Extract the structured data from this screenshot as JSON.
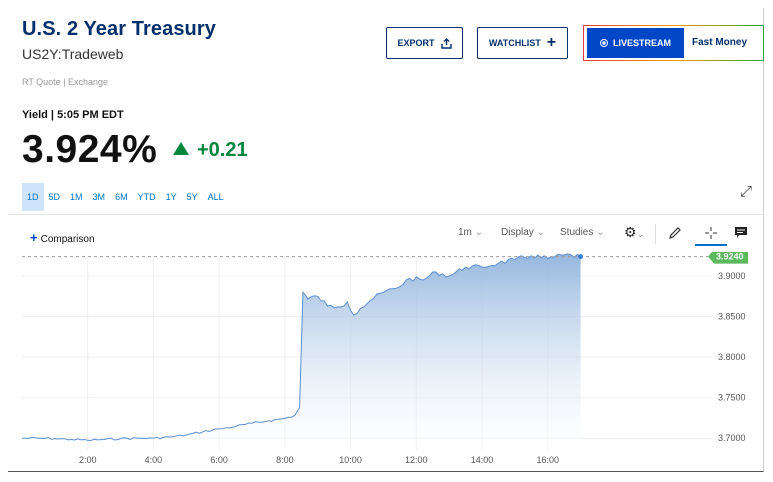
{
  "header": {
    "title": "U.S. 2 Year Treasury",
    "symbol": "US2Y:Tradeweb",
    "rt_quote": "RT Quote | Exchange",
    "yield_label": "Yield | 5:05 PM EDT",
    "price": "3.924%",
    "change": "+0.21"
  },
  "actions": {
    "export_label": "EXPORT",
    "watchlist_label": "WATCHLIST",
    "livestream_label": "LIVESTREAM",
    "fast_money_label": "Fast Money"
  },
  "periods": [
    "1D",
    "5D",
    "1M",
    "3M",
    "6M",
    "YTD",
    "1Y",
    "5Y",
    "ALL"
  ],
  "active_period": "1D",
  "toolbar": {
    "comparison_label": "Comparison",
    "interval_label": "1m",
    "display_label": "Display",
    "studies_label": "Studies"
  },
  "colors": {
    "navy": "#002f6c",
    "blue": "#0047c7",
    "green": "#00873c",
    "area": "#9dbde0"
  },
  "chart_data": {
    "type": "area",
    "x_ticks": [
      "2:00",
      "4:00",
      "6:00",
      "8:00",
      "10:00",
      "12:00",
      "14:00",
      "16:00"
    ],
    "y_ticks": [
      "3.9000",
      "3.8500",
      "3.8000",
      "3.7500",
      "3.7000"
    ],
    "ylim": [
      3.6855,
      3.9235
    ],
    "xlim": [
      0.0,
      21.0
    ],
    "last_value_label": "3.9240",
    "last_value": 3.924,
    "x": [
      0.0,
      0.5,
      1.0,
      1.5,
      2.0,
      2.5,
      3.0,
      3.5,
      4.0,
      4.5,
      5.0,
      5.5,
      6.0,
      6.5,
      7.0,
      7.5,
      8.0,
      8.3,
      8.45,
      8.55,
      8.7,
      9.0,
      9.3,
      9.6,
      9.9,
      10.1,
      10.3,
      10.6,
      11.0,
      11.4,
      11.8,
      12.2,
      12.6,
      13.0,
      13.5,
      14.0,
      14.5,
      15.0,
      15.5,
      16.0,
      16.5,
      17.0
    ],
    "y": [
      3.7,
      3.7,
      3.6995,
      3.6985,
      3.6975,
      3.6985,
      3.6995,
      3.7,
      3.7,
      3.7015,
      3.704,
      3.708,
      3.7115,
      3.7145,
      3.7185,
      3.7215,
      3.7245,
      3.728,
      3.738,
      3.88,
      3.872,
      3.875,
      3.863,
      3.862,
      3.868,
      3.852,
      3.86,
      3.87,
      3.88,
      3.885,
      3.897,
      3.895,
      3.905,
      3.9,
      3.911,
      3.911,
      3.916,
      3.92,
      3.925,
      3.9215,
      3.926,
      3.924
    ]
  }
}
